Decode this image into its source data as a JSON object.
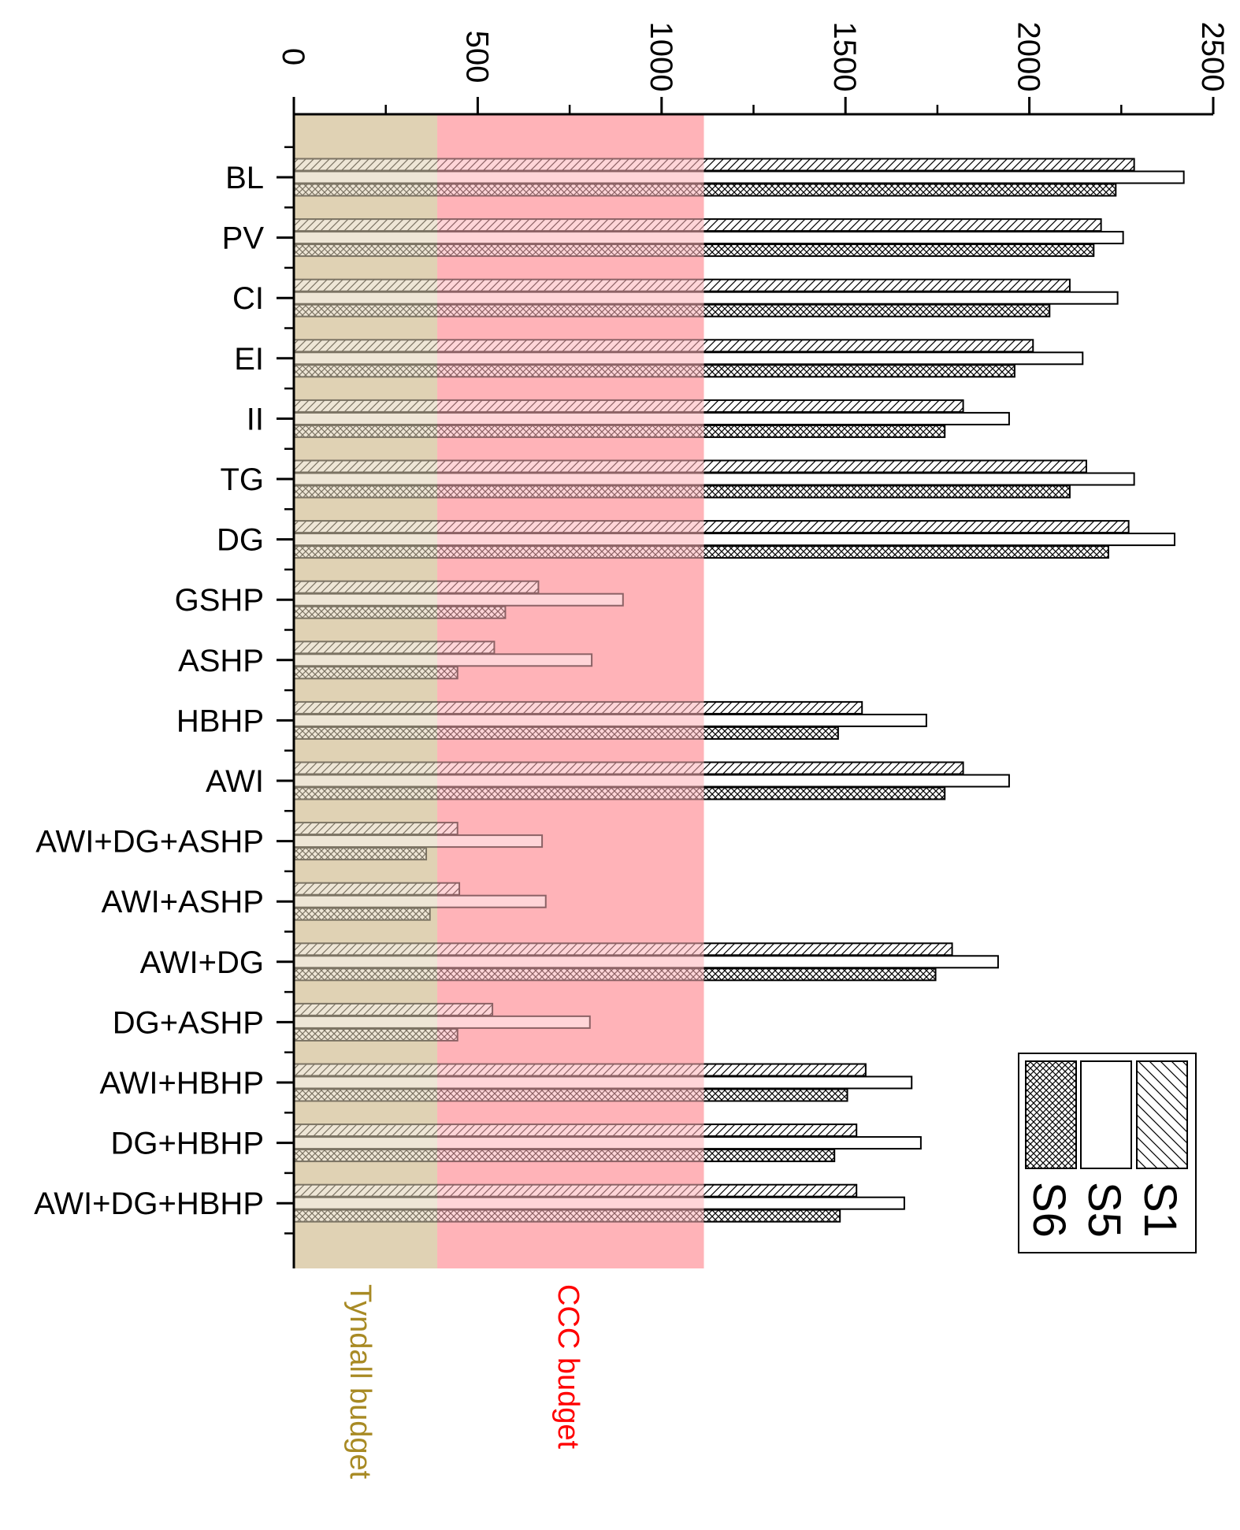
{
  "chart_data": {
    "type": "bar",
    "orientation": "horizontal",
    "categories": [
      "BL",
      "PV",
      "CI",
      "EI",
      "II",
      "TG",
      "DG",
      "GSHP",
      "ASHP",
      "HBHP",
      "AWI",
      "AWI+DG+ASHP",
      "AWI+ASHP",
      "AWI+DG",
      "DG+ASHP",
      "AWI+HBHP",
      "DG+HBHP",
      "AWI+DG+HBHP"
    ],
    "series": [
      {
        "name": "S1",
        "pattern": "diagonal-hatch",
        "values": [
          2285,
          2195,
          2110,
          2010,
          1820,
          2155,
          2270,
          665,
          545,
          1545,
          1820,
          445,
          450,
          1790,
          540,
          1555,
          1530,
          1530
        ]
      },
      {
        "name": "S5",
        "pattern": "solid-white",
        "values": [
          2420,
          2255,
          2240,
          2145,
          1945,
          2285,
          2395,
          895,
          810,
          1720,
          1945,
          675,
          685,
          1915,
          805,
          1680,
          1705,
          1660
        ]
      },
      {
        "name": "S6",
        "pattern": "cross-hatch",
        "values": [
          2235,
          2175,
          2055,
          1960,
          1770,
          2110,
          2215,
          575,
          445,
          1480,
          1770,
          360,
          370,
          1745,
          445,
          1505,
          1470,
          1485
        ]
      }
    ],
    "xlim": [
      0,
      2500
    ],
    "xticks": [
      "0",
      "500",
      "1000",
      "1500",
      "2000",
      "2500"
    ],
    "bands": [
      {
        "label": "Tyndall budget",
        "from": 0,
        "to": 390,
        "color": "#e0d2b4",
        "label_color": "#a88a24"
      },
      {
        "label": "CCC budget",
        "from": 390,
        "to": 1115,
        "color": "#ffb3b8",
        "label_color": "#ff0000"
      }
    ],
    "legend": {
      "position": "bottom-right",
      "entries": [
        "S1",
        "S5",
        "S6"
      ]
    },
    "grid": false,
    "title": "",
    "xlabel": "",
    "ylabel": ""
  }
}
